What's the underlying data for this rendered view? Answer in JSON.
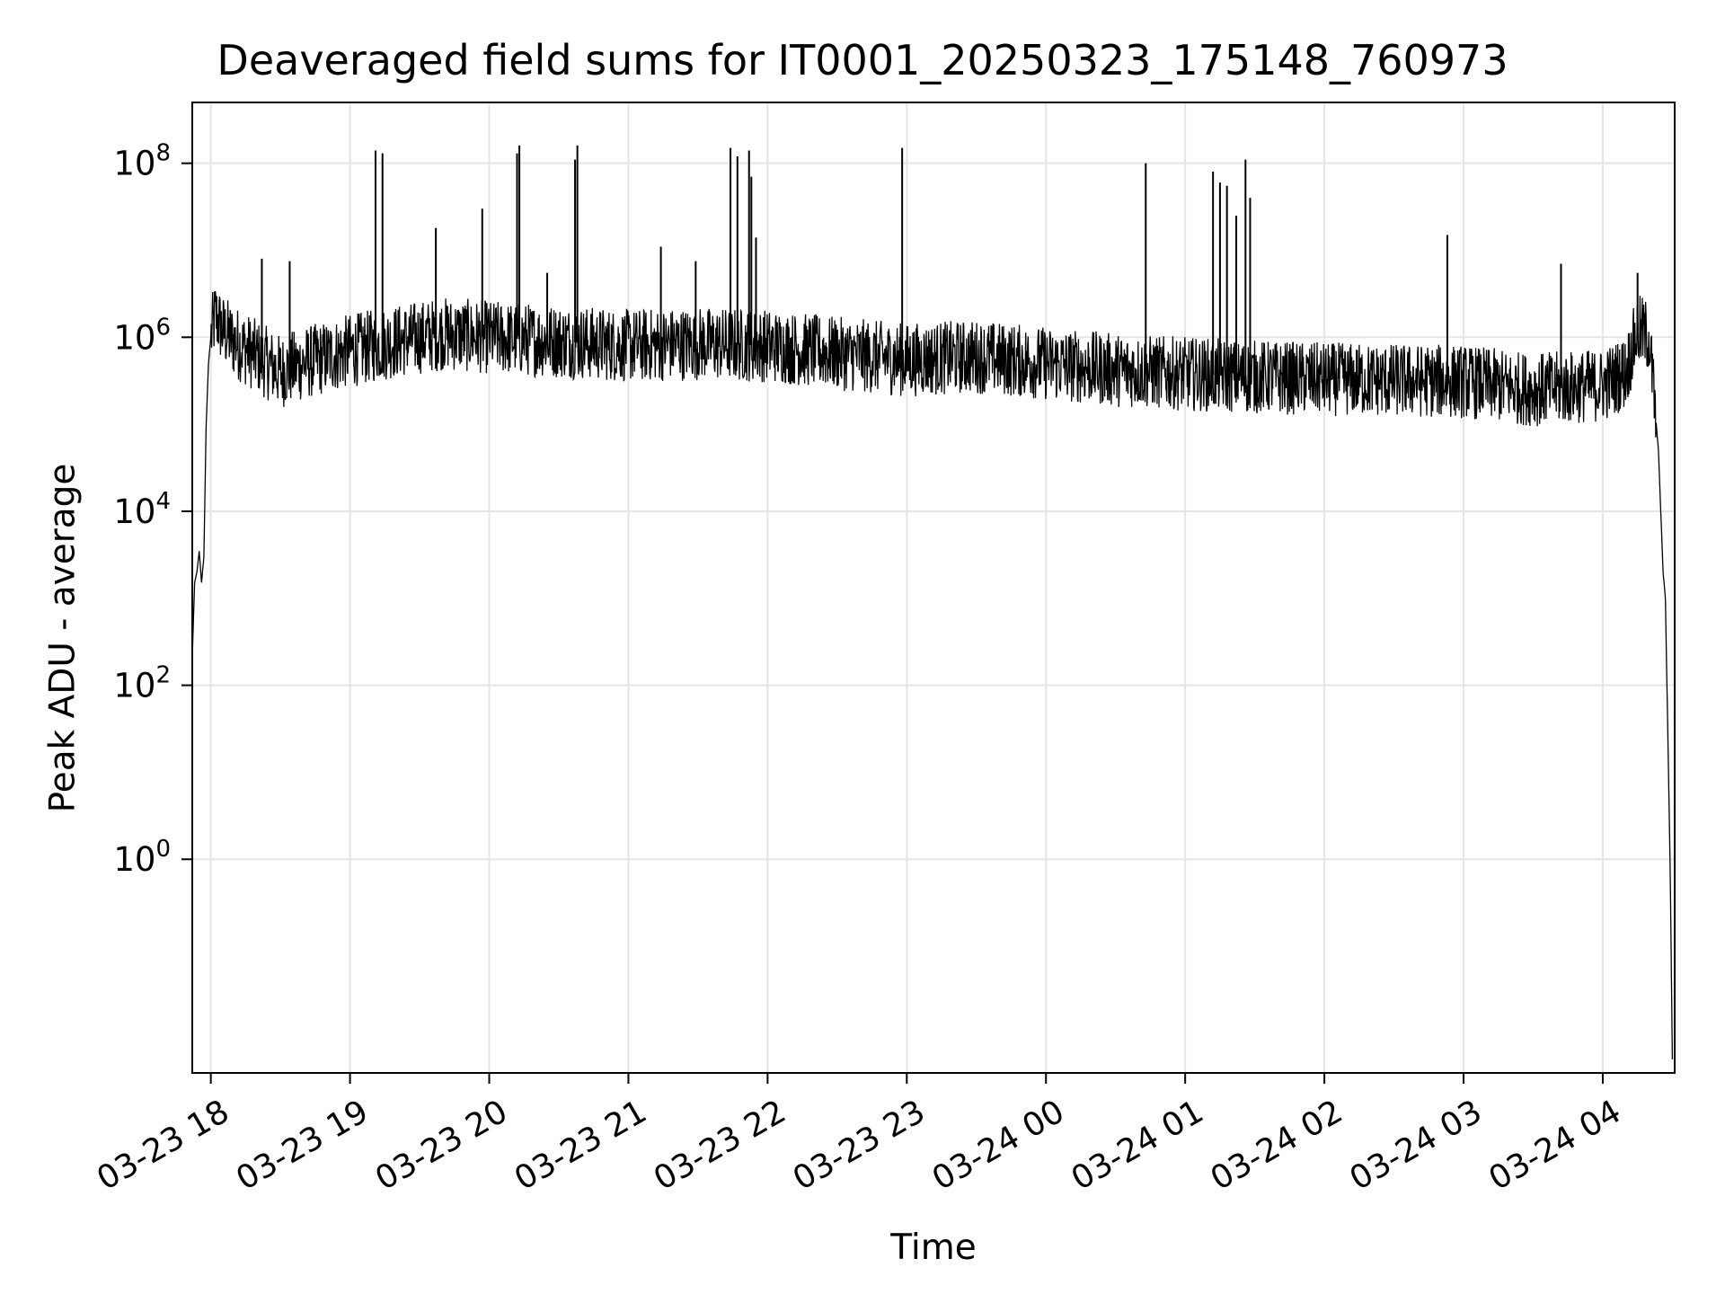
{
  "chart_data": {
    "type": "line",
    "title": "Deaveraged field sums for IT0001_20250323_175148_760973",
    "xlabel": "Time",
    "ylabel": "Peak ADU - average",
    "x_tick_labels": [
      "03-23 18",
      "03-23 19",
      "03-23 20",
      "03-23 21",
      "03-23 22",
      "03-23 23",
      "03-24 00",
      "03-24 01",
      "03-24 02",
      "03-24 03",
      "03-24 04"
    ],
    "y_tick_labels": [
      {
        "base": "10",
        "exp": "0"
      },
      {
        "base": "10",
        "exp": "2"
      },
      {
        "base": "10",
        "exp": "4"
      },
      {
        "base": "10",
        "exp": "6"
      },
      {
        "base": "10",
        "exp": "8"
      }
    ],
    "yscale": "log",
    "xlim": [
      "2025-03-23 17:52",
      "2025-03-24 04:31"
    ],
    "ylim": [
      0.0035,
      500000000
    ],
    "grid": true,
    "line_color": "#000000",
    "grid_color": "#e5e5e5",
    "series": [
      {
        "points": [
          [
            "2025-03-23 17:52",
            200
          ],
          [
            "2025-03-23 17:53",
            1500
          ],
          [
            "2025-03-23 17:54",
            2000
          ],
          [
            "2025-03-23 17:55",
            3500
          ],
          [
            "2025-03-23 17:56",
            1500
          ],
          [
            "2025-03-23 17:57",
            3000
          ],
          [
            "2025-03-23 17:58",
            100000
          ],
          [
            "2025-03-23 17:59",
            500000
          ],
          [
            "2025-03-23 18:00",
            1000000
          ],
          [
            "2025-03-23 18:02",
            1800000
          ],
          [
            "2025-03-23 18:05",
            1200000
          ],
          [
            "2025-03-23 18:10",
            900000
          ],
          [
            "2025-03-23 18:20",
            600000
          ],
          [
            "2025-03-23 18:30",
            400000
          ],
          [
            "2025-03-23 18:40",
            500000
          ],
          [
            "2025-03-23 19:00",
            700000
          ],
          [
            "2025-03-23 19:20",
            900000
          ],
          [
            "2025-03-23 19:40",
            1100000
          ],
          [
            "2025-03-23 20:00",
            1000000
          ],
          [
            "2025-03-23 20:30",
            900000
          ],
          [
            "2025-03-23 21:00",
            800000
          ],
          [
            "2025-03-23 21:30",
            850000
          ],
          [
            "2025-03-23 22:00",
            800000
          ],
          [
            "2025-03-23 22:30",
            650000
          ],
          [
            "2025-03-23 23:00",
            550000
          ],
          [
            "2025-03-23 23:30",
            600000
          ],
          [
            "2025-03-24 00:00",
            500000
          ],
          [
            "2025-03-24 00:30",
            420000
          ],
          [
            "2025-03-24 01:00",
            380000
          ],
          [
            "2025-03-24 01:30",
            350000
          ],
          [
            "2025-03-24 02:00",
            330000
          ],
          [
            "2025-03-24 02:30",
            320000
          ],
          [
            "2025-03-24 03:00",
            310000
          ],
          [
            "2025-03-24 03:30",
            250000
          ],
          [
            "2025-03-24 04:00",
            280000
          ],
          [
            "2025-03-24 04:10",
            400000
          ],
          [
            "2025-03-24 04:15",
            1200000
          ],
          [
            "2025-03-24 04:20",
            1000000
          ],
          [
            "2025-03-24 04:24",
            50000
          ],
          [
            "2025-03-24 04:26",
            2000
          ],
          [
            "2025-03-24 04:27",
            1000
          ],
          [
            "2025-03-24 04:29",
            1
          ],
          [
            "2025-03-24 04:30",
            0.005
          ]
        ],
        "spikes": [
          [
            "2025-03-23 18:22",
            8000000
          ],
          [
            "2025-03-23 18:34",
            7500000
          ],
          [
            "2025-03-23 19:11",
            140000000
          ],
          [
            "2025-03-23 19:14",
            130000000
          ],
          [
            "2025-03-23 19:37",
            18000000
          ],
          [
            "2025-03-23 19:57",
            30000000
          ],
          [
            "2025-03-23 20:12",
            130000000
          ],
          [
            "2025-03-23 20:13",
            160000000
          ],
          [
            "2025-03-23 20:25",
            5500000
          ],
          [
            "2025-03-23 20:37",
            110000000
          ],
          [
            "2025-03-23 20:38",
            160000000
          ],
          [
            "2025-03-23 21:14",
            11000000
          ],
          [
            "2025-03-23 21:29",
            7500000
          ],
          [
            "2025-03-23 21:44",
            150000000
          ],
          [
            "2025-03-23 21:47",
            120000000
          ],
          [
            "2025-03-23 21:52",
            140000000
          ],
          [
            "2025-03-23 21:53",
            70000000
          ],
          [
            "2025-03-23 21:55",
            14000000
          ],
          [
            "2025-03-23 22:58",
            150000000
          ],
          [
            "2025-03-24 00:43",
            100000000
          ],
          [
            "2025-03-24 01:12",
            80000000
          ],
          [
            "2025-03-24 01:15",
            60000000
          ],
          [
            "2025-03-24 01:18",
            55000000
          ],
          [
            "2025-03-24 01:22",
            25000000
          ],
          [
            "2025-03-24 01:26",
            110000000
          ],
          [
            "2025-03-24 01:28",
            40000000
          ],
          [
            "2025-03-24 02:53",
            15000000
          ],
          [
            "2025-03-24 03:42",
            7000000
          ],
          [
            "2025-03-24 04:15",
            5500000
          ]
        ]
      }
    ]
  }
}
